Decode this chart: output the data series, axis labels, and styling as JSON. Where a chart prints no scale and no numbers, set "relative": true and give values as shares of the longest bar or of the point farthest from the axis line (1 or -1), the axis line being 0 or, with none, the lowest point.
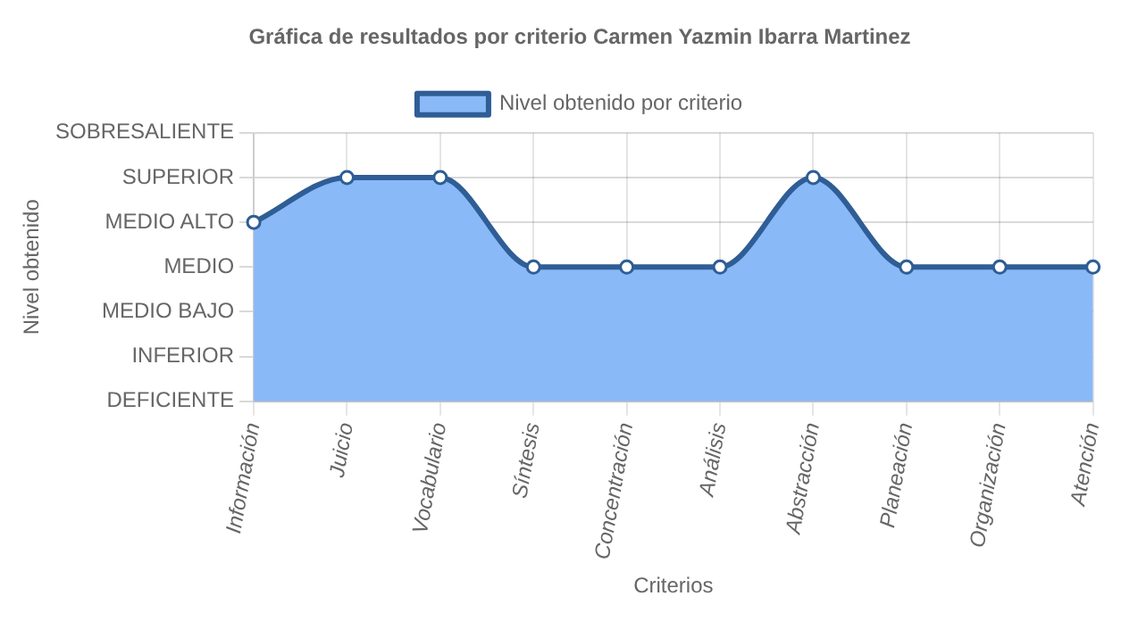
{
  "chart_data": {
    "type": "area",
    "title": "Gráfica de resultados por criterio Carmen Yazmin Ibarra Martinez",
    "xlabel": "Criterios",
    "annotations": [
      "Nivel obtenido"
    ],
    "categories": [
      "Información",
      "Juicio",
      "Vocabulario",
      "Síntesis",
      "Concentración",
      "Análisis",
      "Abstracción",
      "Planeación",
      "Organización",
      "Atención"
    ],
    "y_categories": [
      "SOBRESALIENTE",
      "SUPERIOR",
      "MEDIO ALTO",
      "MEDIO",
      "MEDIO BAJO",
      "INFERIOR",
      "DEFICIENTE"
    ],
    "relative": true,
    "series": [
      {
        "name": "Nivel obtenido por criterio",
        "color": "#89b9f6",
        "values": [
          0.8,
          1,
          1,
          0.6,
          0.6,
          0.6,
          1,
          0.6,
          0.6,
          0.6
        ]
      }
    ],
    "grid": true,
    "legend": "top",
    "marker": "circle",
    "line_style": "solid"
  }
}
